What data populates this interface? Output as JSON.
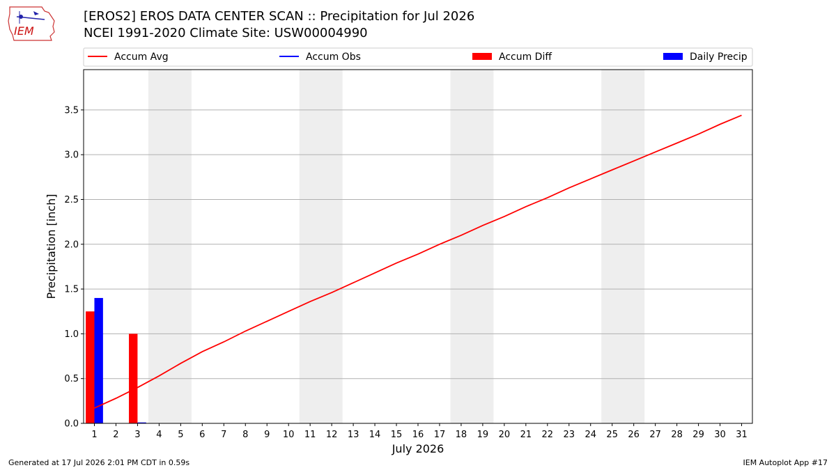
{
  "logo": {
    "text": "IEM"
  },
  "header": {
    "title_line1": "[EROS2] EROS DATA CENTER SCAN :: Precipitation for Jul 2026",
    "title_line2": "NCEI 1991-2020 Climate Site: USW00004990"
  },
  "footer": {
    "generated": "Generated at 17 Jul 2026 2:01 PM CDT in 0.59s",
    "app": "IEM Autoplot App #17"
  },
  "chart_data": {
    "type": "bar",
    "xlabel": "July 2026",
    "ylabel": "Precipitation [inch]",
    "xlim": [
      0.5,
      31.5
    ],
    "ylim": [
      0,
      3.95
    ],
    "yticks": [
      0.0,
      0.5,
      1.0,
      1.5,
      2.0,
      2.5,
      3.0,
      3.5
    ],
    "ytick_labels": [
      "0.0",
      "0.5",
      "1.0",
      "1.5",
      "2.0",
      "2.5",
      "3.0",
      "3.5"
    ],
    "xticks": [
      1,
      2,
      3,
      4,
      5,
      6,
      7,
      8,
      9,
      10,
      11,
      12,
      13,
      14,
      15,
      16,
      17,
      18,
      19,
      20,
      21,
      22,
      23,
      24,
      25,
      26,
      27,
      28,
      29,
      30,
      31
    ],
    "grid": "horizontal",
    "legend_position": "top",
    "weekend_shading": [
      [
        3.5,
        5.5
      ],
      [
        10.5,
        12.5
      ],
      [
        17.5,
        19.5
      ],
      [
        24.5,
        26.5
      ]
    ],
    "days": [
      1,
      2,
      3,
      4,
      5,
      6,
      7,
      8,
      9,
      10,
      11,
      12,
      13,
      14,
      15,
      16,
      17,
      18,
      19,
      20,
      21,
      22,
      23,
      24,
      25,
      26,
      27,
      28,
      29,
      30,
      31
    ],
    "series": [
      {
        "name": "Accum Avg",
        "kind": "line",
        "color": "#ff0000",
        "values": [
          0.17,
          0.28,
          0.4,
          0.53,
          0.67,
          0.8,
          0.91,
          1.03,
          1.14,
          1.25,
          1.36,
          1.46,
          1.57,
          1.68,
          1.79,
          1.89,
          2.0,
          2.1,
          2.21,
          2.31,
          2.42,
          2.52,
          2.63,
          2.73,
          2.83,
          2.93,
          3.03,
          3.13,
          3.23,
          3.34,
          3.44
        ]
      },
      {
        "name": "Accum Obs",
        "kind": "line",
        "color": "#0000ff",
        "values": []
      },
      {
        "name": "Accum Diff",
        "kind": "bar",
        "color": "#ff0000",
        "x": [
          1,
          3
        ],
        "values": [
          1.25,
          1.0
        ]
      },
      {
        "name": "Daily Precip",
        "kind": "bar",
        "color": "#0000ff",
        "x": [
          1,
          3
        ],
        "values": [
          1.4,
          0.01
        ]
      }
    ]
  }
}
